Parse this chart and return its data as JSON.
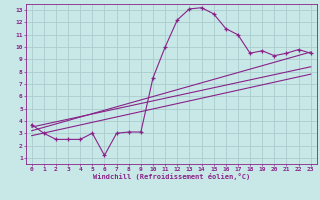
{
  "title": "",
  "xlabel": "Windchill (Refroidissement éolien,°C)",
  "ylabel": "",
  "xlim": [
    -0.5,
    23.5
  ],
  "ylim": [
    0.5,
    13.5
  ],
  "xticks": [
    0,
    1,
    2,
    3,
    4,
    5,
    6,
    7,
    8,
    9,
    10,
    11,
    12,
    13,
    14,
    15,
    16,
    17,
    18,
    19,
    20,
    21,
    22,
    23
  ],
  "yticks": [
    1,
    2,
    3,
    4,
    5,
    6,
    7,
    8,
    9,
    10,
    11,
    12,
    13
  ],
  "bg_color": "#c8e8e8",
  "line_color": "#882288",
  "grid_color": "#aacccc",
  "curve1_x": [
    0,
    1,
    2,
    3,
    4,
    5,
    6,
    7,
    8,
    9,
    10,
    11,
    12,
    13,
    14,
    15,
    16,
    17,
    18,
    19,
    20,
    21,
    22,
    23
  ],
  "curve1_y": [
    3.7,
    3.0,
    2.5,
    2.5,
    2.5,
    3.0,
    1.2,
    3.0,
    3.1,
    3.1,
    7.5,
    10.0,
    12.2,
    13.1,
    13.2,
    12.7,
    11.5,
    11.0,
    9.5,
    9.7,
    9.3,
    9.5,
    9.8,
    9.5
  ],
  "line2_x": [
    0,
    23
  ],
  "line2_y": [
    3.2,
    9.6
  ],
  "line3_x": [
    0,
    23
  ],
  "line3_y": [
    3.5,
    8.4
  ],
  "line4_x": [
    0,
    23
  ],
  "line4_y": [
    2.8,
    7.8
  ],
  "tick_fontsize": 4.5,
  "xlabel_fontsize": 5.0
}
